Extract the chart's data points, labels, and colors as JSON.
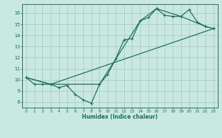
{
  "xlabel": "Humidex (Indice chaleur)",
  "bg_color": "#c8e8e0",
  "line_color": "#1a6e60",
  "grid_color": "#a8ccc4",
  "xlim": [
    -0.5,
    23.5
  ],
  "ylim": [
    7.5,
    16.8
  ],
  "yticks": [
    8,
    9,
    10,
    11,
    12,
    13,
    14,
    15,
    16
  ],
  "xticks": [
    0,
    1,
    2,
    3,
    4,
    5,
    6,
    7,
    8,
    9,
    10,
    11,
    12,
    13,
    14,
    15,
    16,
    17,
    18,
    19,
    20,
    21,
    22,
    23
  ],
  "series1_x": [
    0,
    1,
    2,
    3,
    4,
    5,
    6,
    7,
    8,
    9,
    10,
    11,
    12,
    13,
    14,
    15,
    16,
    17,
    18,
    19,
    20,
    21,
    22,
    23
  ],
  "series1_y": [
    10.2,
    9.6,
    9.6,
    9.6,
    9.3,
    9.5,
    8.7,
    8.2,
    7.9,
    9.6,
    10.5,
    11.9,
    13.6,
    13.7,
    15.3,
    15.6,
    16.4,
    15.8,
    15.7,
    15.7,
    16.3,
    15.2,
    14.8,
    14.6
  ],
  "series2_x": [
    0,
    3,
    9,
    14,
    16,
    19,
    22,
    23
  ],
  "series2_y": [
    10.2,
    9.6,
    9.6,
    15.3,
    16.4,
    15.7,
    14.8,
    14.6
  ],
  "series3_x": [
    0,
    3,
    23
  ],
  "series3_y": [
    10.2,
    9.6,
    14.6
  ]
}
